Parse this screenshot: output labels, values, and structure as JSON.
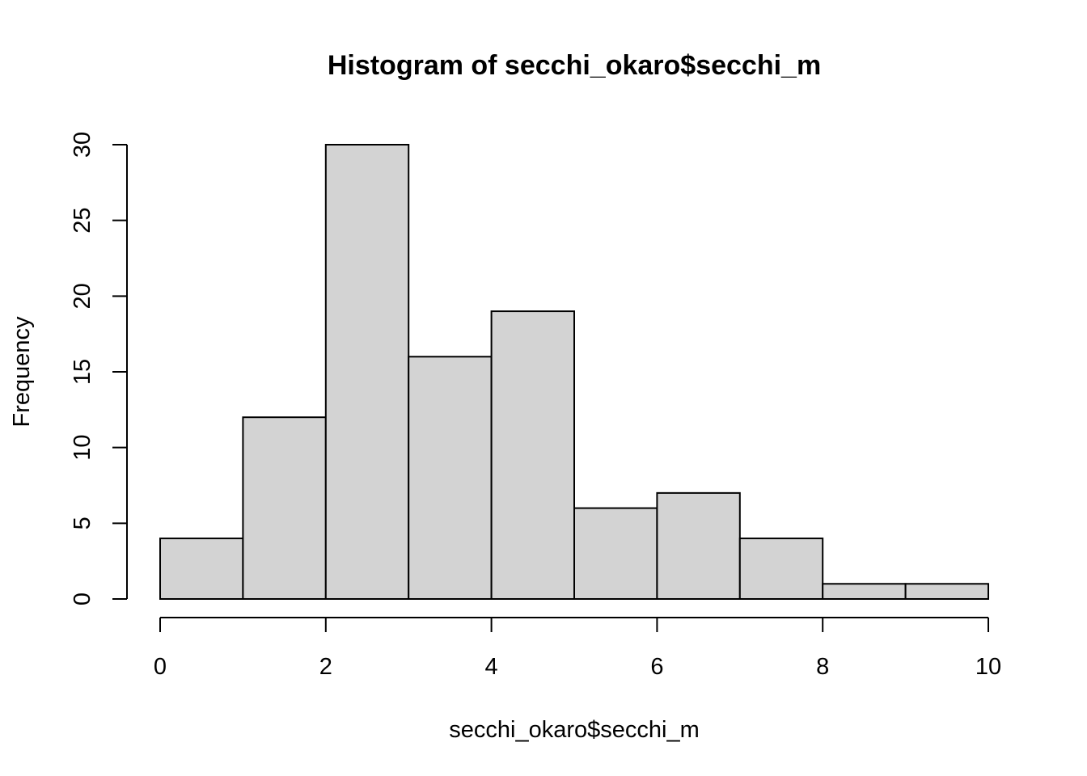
{
  "chart_data": {
    "type": "bar",
    "title": "Histogram of secchi_okaro$secchi_m",
    "xlabel": "secchi_okaro$secchi_m",
    "ylabel": "Frequency",
    "bins": [
      {
        "start": 0,
        "end": 1,
        "count": 4
      },
      {
        "start": 1,
        "end": 2,
        "count": 12
      },
      {
        "start": 2,
        "end": 3,
        "count": 30
      },
      {
        "start": 3,
        "end": 4,
        "count": 16
      },
      {
        "start": 4,
        "end": 5,
        "count": 19
      },
      {
        "start": 5,
        "end": 6,
        "count": 6
      },
      {
        "start": 6,
        "end": 7,
        "count": 7
      },
      {
        "start": 7,
        "end": 8,
        "count": 4
      },
      {
        "start": 8,
        "end": 9,
        "count": 1
      },
      {
        "start": 9,
        "end": 10,
        "count": 1
      }
    ],
    "xlim": [
      0,
      10
    ],
    "ylim": [
      0,
      30
    ],
    "xticks": [
      0,
      2,
      4,
      6,
      8,
      10
    ],
    "yticks": [
      0,
      5,
      10,
      15,
      20,
      25,
      30
    ],
    "bar_color": "#d3d3d3",
    "grid": false,
    "legend": "none"
  }
}
